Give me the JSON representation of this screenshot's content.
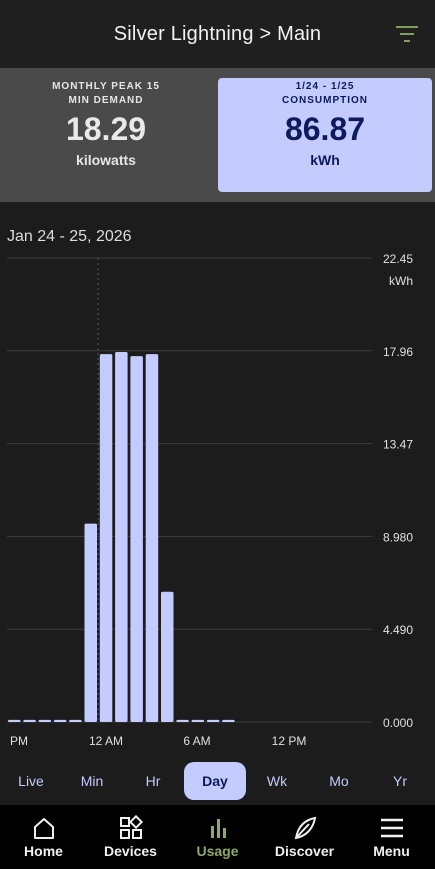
{
  "header": {
    "title": "Silver Lightning > Main",
    "filter_icon": "filter-icon"
  },
  "summary": {
    "demand": {
      "caption_line1": "MONTHLY PEAK 15",
      "caption_line2": "MIN DEMAND",
      "value": "18.29",
      "unit": "kilowatts"
    },
    "consumption": {
      "caption_line1": "1/24 - 1/25",
      "caption_line2": "CONSUMPTION",
      "value": "86.87",
      "unit": "kWh"
    }
  },
  "date_label": "Jan 24 - 25, 2026",
  "chart_data": {
    "type": "bar",
    "y_unit": "kWh",
    "y_ticks": [
      "22.45",
      "17.96",
      "13.47",
      "8.980",
      "4.490",
      "0.000"
    ],
    "ylim": [
      0,
      22.45
    ],
    "x_tick_labels": [
      "PM",
      "12 AM",
      "6 AM",
      "12 PM"
    ],
    "values": [
      0.1,
      0.1,
      0.1,
      0.1,
      0.1,
      9.6,
      17.8,
      17.9,
      17.7,
      17.8,
      6.3,
      0.1,
      0.1,
      0.1,
      0.1
    ],
    "bar_color": "#c3cbff"
  },
  "ranges": {
    "items": [
      "Live",
      "Min",
      "Hr",
      "Day",
      "Wk",
      "Mo",
      "Yr"
    ],
    "active": "Day"
  },
  "nav": {
    "items": [
      {
        "label": "Home",
        "icon": "home-icon"
      },
      {
        "label": "Devices",
        "icon": "devices-icon"
      },
      {
        "label": "Usage",
        "icon": "usage-icon"
      },
      {
        "label": "Discover",
        "icon": "leaf-icon"
      },
      {
        "label": "Menu",
        "icon": "menu-icon"
      }
    ],
    "active": "Usage"
  },
  "colors": {
    "accent": "#c3cbff",
    "nav_active": "#8fa86b",
    "filter_icon": "#7fa05a"
  }
}
